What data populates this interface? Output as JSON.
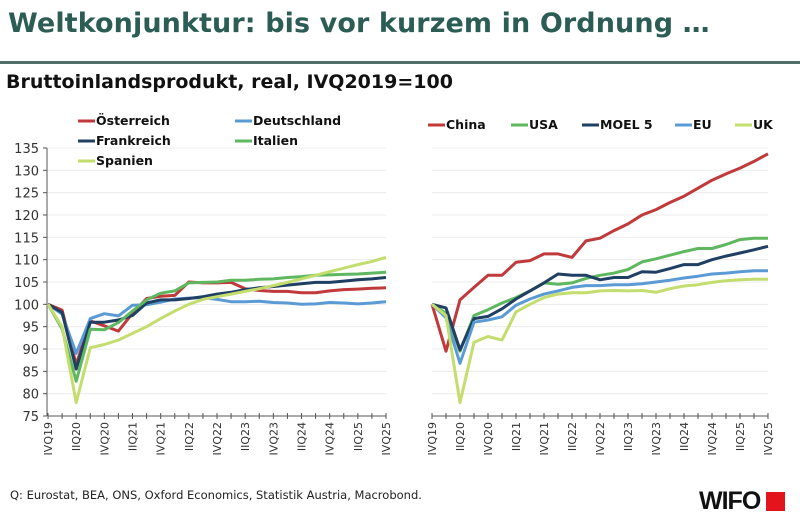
{
  "header": {
    "title": "Weltkonjunktur: bis vor kurzem in Ordnung …",
    "subtitle": "Bruttoinlandsprodukt, real,  IVQ2019=100"
  },
  "footer": {
    "source": "Q: Eurostat, BEA, ONS, Oxford Economics, Statistik Austria, Macrobond.",
    "logo_text": "WIFO"
  },
  "chart_data": [
    {
      "type": "line",
      "title": "",
      "ylim": [
        75,
        135
      ],
      "yticks": [
        75,
        80,
        85,
        90,
        95,
        100,
        105,
        110,
        115,
        120,
        125,
        130,
        135
      ],
      "xlabels": [
        "IVQ19",
        "IIQ20",
        "IVQ20",
        "IIQ21",
        "IVQ21",
        "IIQ22",
        "IVQ22",
        "IIQ23",
        "IVQ23",
        "IIQ24",
        "IVQ24",
        "IIQ25",
        "IVQ25"
      ],
      "n_points": 25,
      "grid": true,
      "legend_position": "top-left",
      "series": [
        {
          "name": "Österreich",
          "color": "#c0393b",
          "values": [
            100,
            98.7,
            86.5,
            96.3,
            95.2,
            94.0,
            98.0,
            101.3,
            101.8,
            102.0,
            105.0,
            104.8,
            104.8,
            104.9,
            103.5,
            103.1,
            102.9,
            102.9,
            102.6,
            102.6,
            103.0,
            103.3,
            103.4,
            103.6,
            103.7
          ]
        },
        {
          "name": "Deutschland",
          "color": "#5b9bd5",
          "values": [
            100,
            97.8,
            89.0,
            96.8,
            97.9,
            97.4,
            99.8,
            99.9,
            100.5,
            101.2,
            101.4,
            101.5,
            101.1,
            100.6,
            100.6,
            100.7,
            100.4,
            100.3,
            100.0,
            100.1,
            100.4,
            100.3,
            100.1,
            100.3,
            100.6
          ]
        },
        {
          "name": "Frankreich",
          "color": "#1f3f63",
          "values": [
            100,
            98.2,
            85.5,
            96.0,
            96.0,
            96.5,
            97.5,
            100.3,
            101.0,
            101.0,
            101.3,
            101.7,
            102.3,
            102.7,
            103.3,
            103.7,
            104.0,
            104.3,
            104.6,
            104.9,
            104.9,
            105.2,
            105.5,
            105.7,
            106.0
          ]
        },
        {
          "name": "Italien",
          "color": "#5fb85f",
          "values": [
            100,
            94.5,
            82.8,
            94.4,
            94.3,
            95.9,
            98.5,
            101.0,
            102.5,
            103.0,
            104.8,
            104.9,
            105.0,
            105.4,
            105.4,
            105.6,
            105.7,
            106.0,
            106.2,
            106.5,
            106.6,
            106.7,
            106.8,
            107.0,
            107.2
          ]
        },
        {
          "name": "Spanien",
          "color": "#c3dd6e",
          "values": [
            100,
            95.0,
            78.0,
            90.3,
            91.0,
            92.0,
            93.5,
            95.0,
            96.8,
            98.5,
            100.0,
            101.1,
            101.7,
            102.3,
            102.9,
            103.5,
            104.2,
            104.9,
            105.7,
            106.5,
            107.3,
            108.1,
            108.9,
            109.6,
            110.5
          ]
        }
      ]
    },
    {
      "type": "line",
      "title": "",
      "ylim": [
        75,
        135
      ],
      "xlabels": [
        "IVQ19",
        "IIQ20",
        "IVQ20",
        "IIQ21",
        "IVQ21",
        "IIQ22",
        "IVQ22",
        "IIQ23",
        "IVQ23",
        "IIQ24",
        "IVQ24",
        "IIQ25",
        "IVQ25"
      ],
      "n_points": 25,
      "grid": true,
      "legend_position": "top",
      "series": [
        {
          "name": "China",
          "color": "#c0393b",
          "values": [
            100,
            89.5,
            101.0,
            103.8,
            106.5,
            106.5,
            109.4,
            109.8,
            111.3,
            111.3,
            110.5,
            114.2,
            114.8,
            116.5,
            118.0,
            120.0,
            121.2,
            122.8,
            124.2,
            126.0,
            127.8,
            129.2,
            130.5,
            132.0,
            133.7
          ]
        },
        {
          "name": "USA",
          "color": "#5fb85f",
          "values": [
            100,
            98.0,
            89.5,
            97.5,
            98.8,
            100.3,
            101.5,
            103.0,
            104.8,
            104.5,
            104.8,
            105.8,
            106.5,
            107.0,
            107.8,
            109.5,
            110.2,
            111.0,
            111.8,
            112.5,
            112.5,
            113.4,
            114.5,
            114.8,
            114.8
          ]
        },
        {
          "name": "MOEL 5",
          "color": "#1f3f63",
          "values": [
            100,
            99.2,
            89.8,
            96.8,
            97.3,
            99.0,
            101.2,
            103.0,
            104.8,
            106.8,
            106.5,
            106.5,
            105.5,
            106.0,
            106.0,
            107.3,
            107.2,
            108.0,
            108.9,
            108.9,
            110.0,
            110.8,
            111.5,
            112.2,
            113.0
          ]
        },
        {
          "name": "EU",
          "color": "#5b9bd5",
          "values": [
            100,
            97.0,
            86.8,
            96.0,
            96.5,
            97.2,
            99.8,
            101.2,
            102.3,
            103.0,
            103.8,
            104.2,
            104.2,
            104.4,
            104.4,
            104.6,
            105.0,
            105.4,
            105.9,
            106.3,
            106.8,
            107.0,
            107.3,
            107.5,
            107.5
          ]
        },
        {
          "name": "UK",
          "color": "#c3dd6e",
          "values": [
            100,
            97.5,
            78.0,
            91.5,
            92.8,
            92.0,
            98.3,
            100.0,
            101.5,
            102.3,
            102.6,
            102.6,
            103.0,
            103.1,
            103.0,
            103.1,
            102.7,
            103.5,
            104.1,
            104.4,
            104.9,
            105.3,
            105.5,
            105.6,
            105.6
          ]
        }
      ]
    }
  ]
}
